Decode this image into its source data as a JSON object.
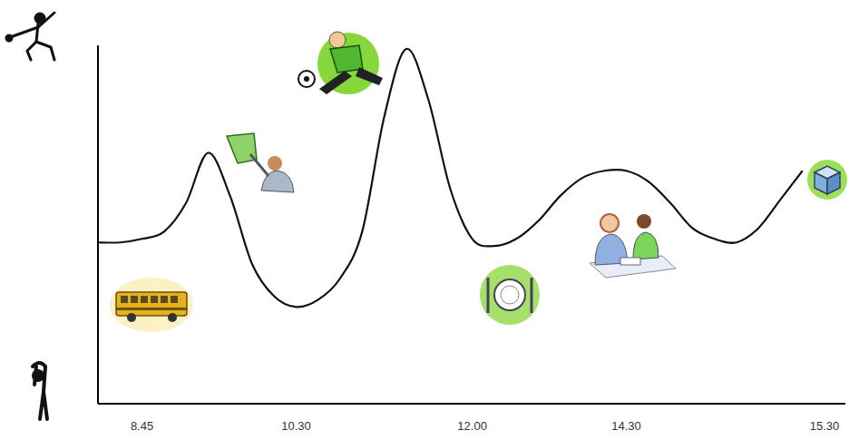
{
  "chart_data": {
    "type": "line",
    "categories": [
      null,
      null,
      "8.45",
      null,
      null,
      null,
      null,
      null,
      null,
      "10.30",
      null,
      null,
      null,
      null,
      null,
      null,
      null,
      "12.00",
      null,
      null,
      null,
      null,
      null,
      null,
      "14.30",
      null,
      null,
      null,
      null,
      null,
      null,
      null,
      null,
      "15.30"
    ],
    "values": [
      45,
      45,
      46,
      48,
      56,
      70,
      58,
      39,
      30,
      27,
      29,
      35,
      48,
      80,
      99,
      85,
      60,
      46,
      44,
      46,
      51,
      58,
      63,
      65,
      65,
      62,
      56,
      49,
      46,
      45,
      49,
      57,
      65,
      null
    ],
    "color": "#111111",
    "ylim": [
      0,
      100
    ],
    "tick_labels": "x"
  }
}
